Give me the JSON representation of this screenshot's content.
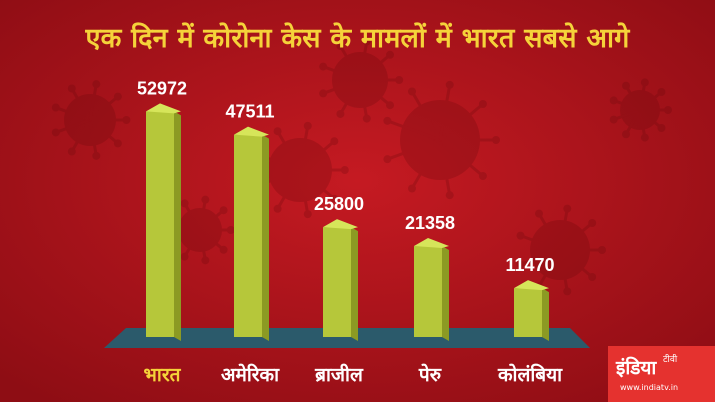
{
  "colors": {
    "background": "#b3141c",
    "title": "#f5d33a",
    "bar": "#b6c73a",
    "platform": "#2b5a6b",
    "value_label": "#ffffff",
    "category_label": "#ffffff",
    "highlight_label": "#f5d33a",
    "logo_bg": "#e5322f"
  },
  "logo": {
    "brand": "इंडिया",
    "sub": "टीवी",
    "url": "www.indiatv.in"
  },
  "chart_data": {
    "type": "bar",
    "title": "एक दिन में कोरोना केस के मामलों में भारत सबसे आगे",
    "categories": [
      "भारत",
      "अमेरिका",
      "ब्राजील",
      "पेरु",
      "कोलंबिया"
    ],
    "values": [
      52972,
      47511,
      25800,
      21358,
      11470
    ],
    "highlight_category": "भारत",
    "ylim": [
      0,
      58000
    ],
    "grid": false,
    "legend": "none"
  }
}
